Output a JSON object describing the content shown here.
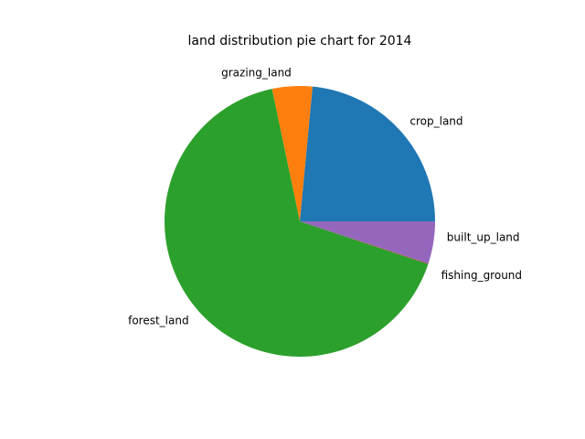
{
  "chart_data": {
    "type": "pie",
    "title": "land distribution pie chart for 2014",
    "slices": [
      {
        "label": "crop_land",
        "value": 23.5,
        "color": "#1f77b4"
      },
      {
        "label": "grazing_land",
        "value": 4.8,
        "color": "#ff7f0e"
      },
      {
        "label": "forest_land",
        "value": 66.6,
        "color": "#2ca02c"
      },
      {
        "label": "fishing_ground",
        "value": 0.05,
        "color": "#d62728"
      },
      {
        "label": "built_up_land",
        "value": 5.05,
        "color": "#9467bd"
      }
    ],
    "start_angle": 0,
    "direction": "counterclockwise"
  }
}
